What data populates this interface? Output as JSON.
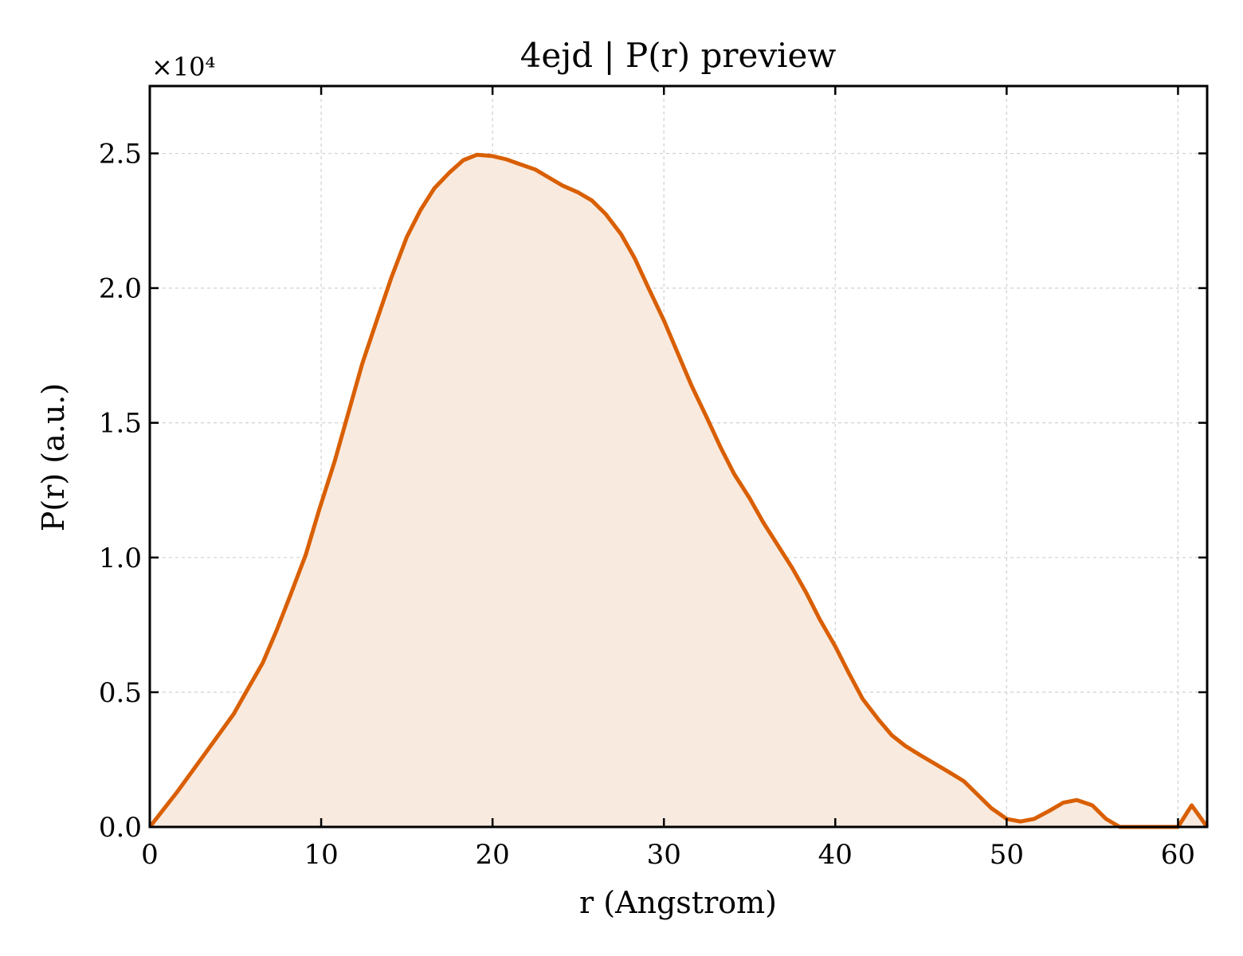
{
  "colors": {
    "line": "#d95f02",
    "fill": "#f9eadf",
    "grid": "#d0d0d0",
    "axis": "#000000"
  },
  "chart_data": {
    "type": "area",
    "title": "4ejd | P(r) preview",
    "xlabel": "r (Angstrom)",
    "ylabel": "P(r) (a.u.)",
    "y_multiplier": "×10⁴",
    "xlim": [
      0,
      61.7
    ],
    "ylim": [
      0,
      2.75
    ],
    "xticks": [
      0,
      10,
      20,
      30,
      40,
      50,
      60
    ],
    "yticks": [
      0.0,
      0.5,
      1.0,
      1.5,
      2.0,
      2.5
    ],
    "xtick_labels": [
      "0",
      "10",
      "20",
      "30",
      "40",
      "50",
      "60"
    ],
    "ytick_labels": [
      "0.0",
      "0.5",
      "1.0",
      "1.5",
      "2.0",
      "2.5"
    ],
    "grid": true,
    "legend": false,
    "series": [
      {
        "x": [
          0.0,
          1.6,
          3.2,
          4.9,
          5.7,
          6.6,
          7.4,
          8.2,
          9.1,
          9.9,
          10.8,
          11.6,
          12.4,
          13.3,
          14.1,
          15.0,
          15.8,
          16.6,
          17.5,
          18.3,
          19.1,
          20.0,
          20.8,
          21.6,
          22.5,
          23.3,
          24.1,
          25.0,
          25.8,
          26.6,
          27.5,
          28.3,
          29.1,
          30.0,
          30.8,
          31.6,
          32.5,
          33.3,
          34.1,
          35.0,
          35.8,
          36.6,
          37.5,
          38.3,
          39.1,
          40.0,
          40.8,
          41.6,
          42.5,
          43.3,
          44.1,
          45.0,
          45.8,
          46.6,
          47.5,
          48.3,
          49.1,
          50.0,
          50.8,
          51.6,
          52.5,
          53.3,
          54.1,
          55.0,
          55.8,
          56.6,
          57.5,
          58.3,
          59.1,
          60.0,
          60.8,
          61.7
        ],
        "y": [
          0.0,
          0.13,
          0.27,
          0.42,
          0.51,
          0.61,
          0.73,
          0.86,
          1.01,
          1.18,
          1.36,
          1.54,
          1.72,
          1.89,
          2.04,
          2.19,
          2.29,
          2.37,
          2.43,
          2.475,
          2.495,
          2.49,
          2.478,
          2.46,
          2.44,
          2.41,
          2.38,
          2.355,
          2.325,
          2.275,
          2.2,
          2.11,
          2.0,
          1.88,
          1.76,
          1.64,
          1.52,
          1.41,
          1.31,
          1.22,
          1.13,
          1.05,
          0.96,
          0.87,
          0.77,
          0.67,
          0.57,
          0.475,
          0.4,
          0.34,
          0.3,
          0.265,
          0.235,
          0.205,
          0.17,
          0.12,
          0.07,
          0.03,
          0.02,
          0.03,
          0.06,
          0.09,
          0.1,
          0.08,
          0.03,
          0.0,
          0.0,
          0.0,
          0.0,
          0.0,
          0.08,
          0.0
        ]
      }
    ]
  }
}
